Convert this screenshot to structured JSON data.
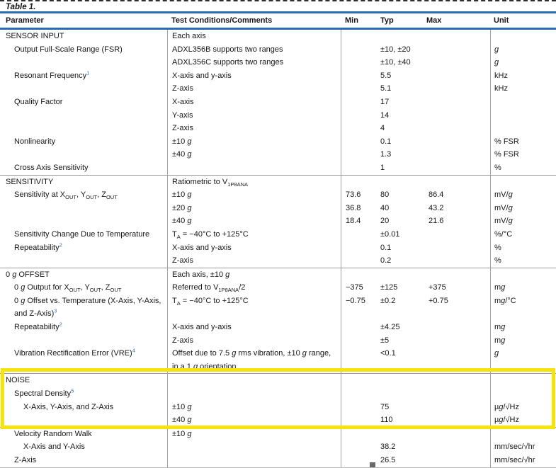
{
  "table": {
    "caption": "Table 1.",
    "accent_blue": "#2a6cb4",
    "columns": {
      "parameter": "Parameter",
      "conditions": "Test Conditions/Comments",
      "min": "Min",
      "typ": "Typ",
      "max": "Max",
      "unit": "Unit"
    },
    "rows_before_highlight": [
      {
        "parameter": "SENSOR INPUT",
        "indent": 0,
        "conditions": "Each axis",
        "min": "",
        "typ": "",
        "max": "",
        "unit": ""
      },
      {
        "parameter": "Output Full-Scale Range (FSR)",
        "indent": 1,
        "conditions": "ADXL356B supports two ranges",
        "min": "",
        "typ": "±10, ±20",
        "max": "",
        "unit": "*g*"
      },
      {
        "parameter": "",
        "indent": 1,
        "conditions": "ADXL356C supports two ranges",
        "min": "",
        "typ": "±10, ±40",
        "max": "",
        "unit": "*g*"
      },
      {
        "parameter": "Resonant Frequency^1^",
        "indent": 1,
        "conditions": "X-axis and y-axis",
        "min": "",
        "typ": "5.5",
        "max": "",
        "unit": "kHz"
      },
      {
        "parameter": "",
        "indent": 1,
        "conditions": "Z-axis",
        "min": "",
        "typ": "5.1",
        "max": "",
        "unit": "kHz"
      },
      {
        "parameter": "Quality Factor",
        "indent": 1,
        "conditions": "X-axis",
        "min": "",
        "typ": "17",
        "max": "",
        "unit": ""
      },
      {
        "parameter": "",
        "indent": 1,
        "conditions": "Y-axis",
        "min": "",
        "typ": "14",
        "max": "",
        "unit": ""
      },
      {
        "parameter": "",
        "indent": 1,
        "conditions": "Z-axis",
        "min": "",
        "typ": "4",
        "max": "",
        "unit": ""
      },
      {
        "parameter": "Nonlinearity",
        "indent": 1,
        "conditions": "±10 *g*",
        "min": "",
        "typ": "0.1",
        "max": "",
        "unit": "% FSR"
      },
      {
        "parameter": "",
        "indent": 1,
        "conditions": "±40 *g*",
        "min": "",
        "typ": "1.3",
        "max": "",
        "unit": "% FSR"
      },
      {
        "parameter": "Cross Axis Sensitivity",
        "indent": 1,
        "conditions": "",
        "min": "",
        "typ": "1",
        "max": "",
        "unit": "%"
      },
      {
        "parameter": "SENSITIVITY",
        "indent": 0,
        "conditions": "Ratiometric to V~1P8ANA~",
        "min": "",
        "typ": "",
        "max": "",
        "unit": "",
        "section_divider": true
      },
      {
        "parameter": "Sensitivity at X~OUT~, Y~OUT~, Z~OUT~",
        "indent": 1,
        "conditions": "±10 *g*",
        "min": "73.6",
        "typ": "80",
        "max": "86.4",
        "unit": "mV/*g*"
      },
      {
        "parameter": "",
        "indent": 1,
        "conditions": "±20 *g*",
        "min": "36.8",
        "typ": "40",
        "max": "43.2",
        "unit": "mV/*g*"
      },
      {
        "parameter": "",
        "indent": 1,
        "conditions": "±40 *g*",
        "min": "18.4",
        "typ": "20",
        "max": "21.6",
        "unit": "mV/*g*"
      },
      {
        "parameter": "Sensitivity Change Due to Temperature",
        "indent": 1,
        "conditions": "T~A~ = −40°C to +125°C",
        "min": "",
        "typ": "±0.01",
        "max": "",
        "unit": "%/°C"
      },
      {
        "parameter": "Repeatability^2^",
        "indent": 1,
        "conditions": "X-axis and y-axis",
        "min": "",
        "typ": "0.1",
        "max": "",
        "unit": "%"
      },
      {
        "parameter": "",
        "indent": 1,
        "conditions": "Z-axis",
        "min": "",
        "typ": "0.2",
        "max": "",
        "unit": "%"
      },
      {
        "parameter": "0 *g* OFFSET",
        "indent": 0,
        "conditions": "Each axis, ±10 *g*",
        "min": "",
        "typ": "",
        "max": "",
        "unit": "",
        "section_divider": true
      },
      {
        "parameter": "0 *g* Output for X~OUT~, Y~OUT~, Z~OUT~",
        "indent": 1,
        "conditions": "Referred to V~1P8ANA~/2",
        "min": "−375",
        "typ": "±125",
        "max": "+375",
        "unit": "m*g*"
      },
      {
        "parameter": "0 *g* Offset vs. Temperature (X-Axis, Y-Axis, and Z-Axis)^3^",
        "indent": 1,
        "conditions": "T~A~ = −40°C to +125°C",
        "min": "−0.75",
        "typ": "±0.2",
        "max": "+0.75",
        "unit": "m*g*/°C"
      },
      {
        "parameter": "Repeatability^2^",
        "indent": 1,
        "conditions": "X-axis and y-axis",
        "min": "",
        "typ": "±4.25",
        "max": "",
        "unit": "m*g*"
      },
      {
        "parameter": "",
        "indent": 1,
        "conditions": "Z-axis",
        "min": "",
        "typ": "±5",
        "max": "",
        "unit": "m*g*"
      },
      {
        "parameter": "Vibration Rectification Error (VRE)^4^",
        "indent": 1,
        "conditions": "Offset due to 7.5 *g* rms vibration, ±10 *g* range, in a 1 *g* orientation",
        "min": "",
        "typ": "<0.1",
        "max": "",
        "unit": "*g*"
      }
    ],
    "rows_highlighted": [
      {
        "parameter": "NOISE",
        "indent": 0,
        "conditions": "",
        "min": "",
        "typ": "",
        "max": "",
        "unit": "",
        "section_divider": true
      },
      {
        "parameter": "Spectral Density^5^",
        "indent": 1,
        "conditions": "",
        "min": "",
        "typ": "",
        "max": "",
        "unit": ""
      },
      {
        "parameter": "X-Axis, Y-Axis, and Z-Axis",
        "indent": 2,
        "conditions": "±10 *g*",
        "min": "",
        "typ": "75",
        "max": "",
        "unit": "µ*g*/√Hz"
      },
      {
        "parameter": "",
        "indent": 2,
        "conditions": "±40 *g*",
        "min": "",
        "typ": "110",
        "max": "",
        "unit": "µ*g*/√Hz"
      }
    ],
    "rows_after_highlight": [
      {
        "parameter": "Velocity Random Walk",
        "indent": 1,
        "conditions": "±10 *g*",
        "min": "",
        "typ": "",
        "max": "",
        "unit": "",
        "section_divider": true
      },
      {
        "parameter": "X-Axis and Y-Axis",
        "indent": 2,
        "conditions": "",
        "min": "",
        "typ": "38.2",
        "max": "",
        "unit": "mm/sec/√hr"
      },
      {
        "parameter": "Z-Axis",
        "indent": 1,
        "conditions": "",
        "min": "",
        "typ": "26.5",
        "max": "",
        "unit": "mm/sec/√hr"
      }
    ],
    "highlight": {
      "color": "#f6e30a"
    }
  }
}
